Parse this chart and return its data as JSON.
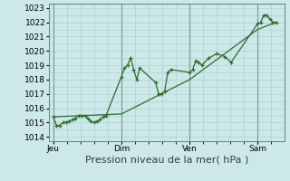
{
  "background_color": "#cce8e8",
  "plot_bg_color": "#cce8e8",
  "grid_color": "#aacccc",
  "line_color": "#2d6b2d",
  "xlabel": "Pression niveau de la mer( hPa )",
  "ylim": [
    1013.7,
    1023.3
  ],
  "yticks": [
    1014,
    1015,
    1016,
    1017,
    1018,
    1019,
    1020,
    1021,
    1022,
    1023
  ],
  "xtick_labels": [
    "Jeu",
    "Dim",
    "Ven",
    "Sam"
  ],
  "xtick_positions": [
    0.0,
    0.333,
    0.667,
    1.0
  ],
  "series1_x": [
    0.0,
    0.015,
    0.03,
    0.048,
    0.063,
    0.078,
    0.093,
    0.108,
    0.123,
    0.14,
    0.155,
    0.168,
    0.183,
    0.198,
    0.213,
    0.228,
    0.243,
    0.258,
    0.333,
    0.348,
    0.363,
    0.378,
    0.393,
    0.408,
    0.423,
    0.5,
    0.515,
    0.53,
    0.545,
    0.56,
    0.575,
    0.667,
    0.682,
    0.697,
    0.712,
    0.727,
    0.76,
    0.8,
    0.84,
    0.87,
    1.0,
    1.015,
    1.03,
    1.045,
    1.06,
    1.075,
    1.09
  ],
  "series1_y": [
    1015.4,
    1014.8,
    1014.8,
    1015.0,
    1015.0,
    1015.1,
    1015.2,
    1015.3,
    1015.5,
    1015.5,
    1015.5,
    1015.3,
    1015.1,
    1015.0,
    1015.1,
    1015.2,
    1015.4,
    1015.5,
    1018.2,
    1018.8,
    1019.0,
    1019.5,
    1018.7,
    1018.0,
    1018.8,
    1017.8,
    1017.0,
    1017.0,
    1017.2,
    1018.5,
    1018.7,
    1018.5,
    1018.7,
    1019.3,
    1019.2,
    1019.0,
    1019.5,
    1019.8,
    1019.6,
    1019.2,
    1021.9,
    1022.0,
    1022.5,
    1022.5,
    1022.2,
    1022.0,
    1022.0
  ],
  "series2_x": [
    0.0,
    0.333,
    0.667,
    1.0,
    1.09
  ],
  "series2_y": [
    1015.4,
    1015.6,
    1018.0,
    1021.5,
    1022.0
  ],
  "xlabel_fontsize": 8,
  "tick_fontsize": 6.5
}
